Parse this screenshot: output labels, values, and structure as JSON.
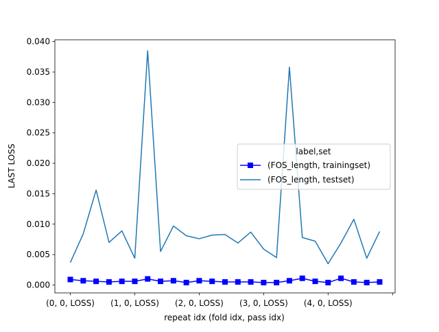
{
  "chart_data": {
    "type": "line",
    "title": "",
    "xlabel": "repeat idx (fold idx, pass idx)",
    "ylabel": "LAST LOSS",
    "x": [
      0,
      1,
      2,
      3,
      4,
      5,
      6,
      7,
      8,
      9,
      10,
      11,
      12,
      13,
      14,
      15,
      16,
      17,
      18,
      19,
      20,
      21,
      22,
      23,
      24
    ],
    "x_ticks": [
      {
        "value": 0,
        "label": "(0, 0, LOSS)"
      },
      {
        "value": 5,
        "label": "(1, 0, LOSS)"
      },
      {
        "value": 10,
        "label": "(2, 0, LOSS)"
      },
      {
        "value": 15,
        "label": "(3, 0, LOSS)"
      },
      {
        "value": 20,
        "label": "(4, 0, LOSS)"
      },
      {
        "value": 25,
        "label": ""
      }
    ],
    "xlim": [
      -1.2,
      25.2
    ],
    "y_ticks": [
      {
        "value": 0.0,
        "label": "0.000"
      },
      {
        "value": 0.005,
        "label": "0.005"
      },
      {
        "value": 0.01,
        "label": "0.010"
      },
      {
        "value": 0.015,
        "label": "0.015"
      },
      {
        "value": 0.02,
        "label": "0.020"
      },
      {
        "value": 0.025,
        "label": "0.025"
      },
      {
        "value": 0.03,
        "label": "0.030"
      },
      {
        "value": 0.035,
        "label": "0.035"
      },
      {
        "value": 0.04,
        "label": "0.040"
      }
    ],
    "ylim": [
      -0.0013,
      0.0403
    ],
    "grid": false,
    "legend": {
      "title": "label,set",
      "placement": "center-right"
    },
    "series": [
      {
        "name": "(FOS_length, trainingset)",
        "color": "#0000ff",
        "marker": "square",
        "values": [
          0.0009,
          0.0007,
          0.0006,
          0.0005,
          0.0006,
          0.0006,
          0.001,
          0.0006,
          0.0007,
          0.0004,
          0.0007,
          0.0006,
          0.0005,
          0.0005,
          0.0005,
          0.0004,
          0.0004,
          0.0007,
          0.0011,
          0.0006,
          0.0004,
          0.0011,
          0.0005,
          0.0004,
          0.0005
        ]
      },
      {
        "name": "(FOS_length, testset)",
        "color": "#1f77b4",
        "marker": "none",
        "values": [
          0.0037,
          0.0084,
          0.0156,
          0.007,
          0.0089,
          0.0044,
          0.0385,
          0.0055,
          0.0097,
          0.0081,
          0.0076,
          0.0082,
          0.0083,
          0.0069,
          0.0087,
          0.0059,
          0.0045,
          0.0358,
          0.0078,
          0.0072,
          0.0035,
          0.0069,
          0.0108,
          0.0044,
          0.0088
        ]
      }
    ]
  }
}
